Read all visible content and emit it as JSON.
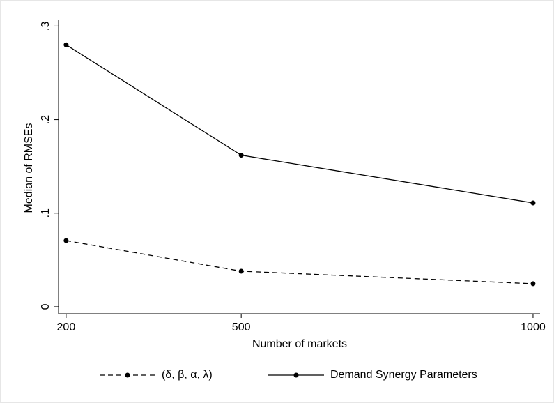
{
  "chart_data": {
    "type": "line",
    "x": [
      200,
      500,
      1000
    ],
    "series": [
      {
        "name": "(δ, β, α, λ)",
        "color": "#000000",
        "line_style": "dashed",
        "values": [
          0.0707,
          0.038,
          0.0246
        ]
      },
      {
        "name": "Demand Synergy Parameters",
        "color": "#000000",
        "line_style": "solid",
        "values": [
          0.28,
          0.162,
          0.111
        ]
      }
    ],
    "xlabel": "Number of markets",
    "ylabel": "Median of RMSEs",
    "xlim": [
      187,
      1012
    ],
    "xticks": [
      200,
      500,
      1000
    ],
    "ylim": [
      -0.0075,
      0.307
    ],
    "yticks": [
      0,
      {
        "value": 0.1,
        "label": ".1"
      },
      {
        "value": 0.2,
        "label": ".2"
      },
      {
        "value": 0.3,
        "label": ".3"
      }
    ],
    "grid": false,
    "legend": "bottom"
  }
}
